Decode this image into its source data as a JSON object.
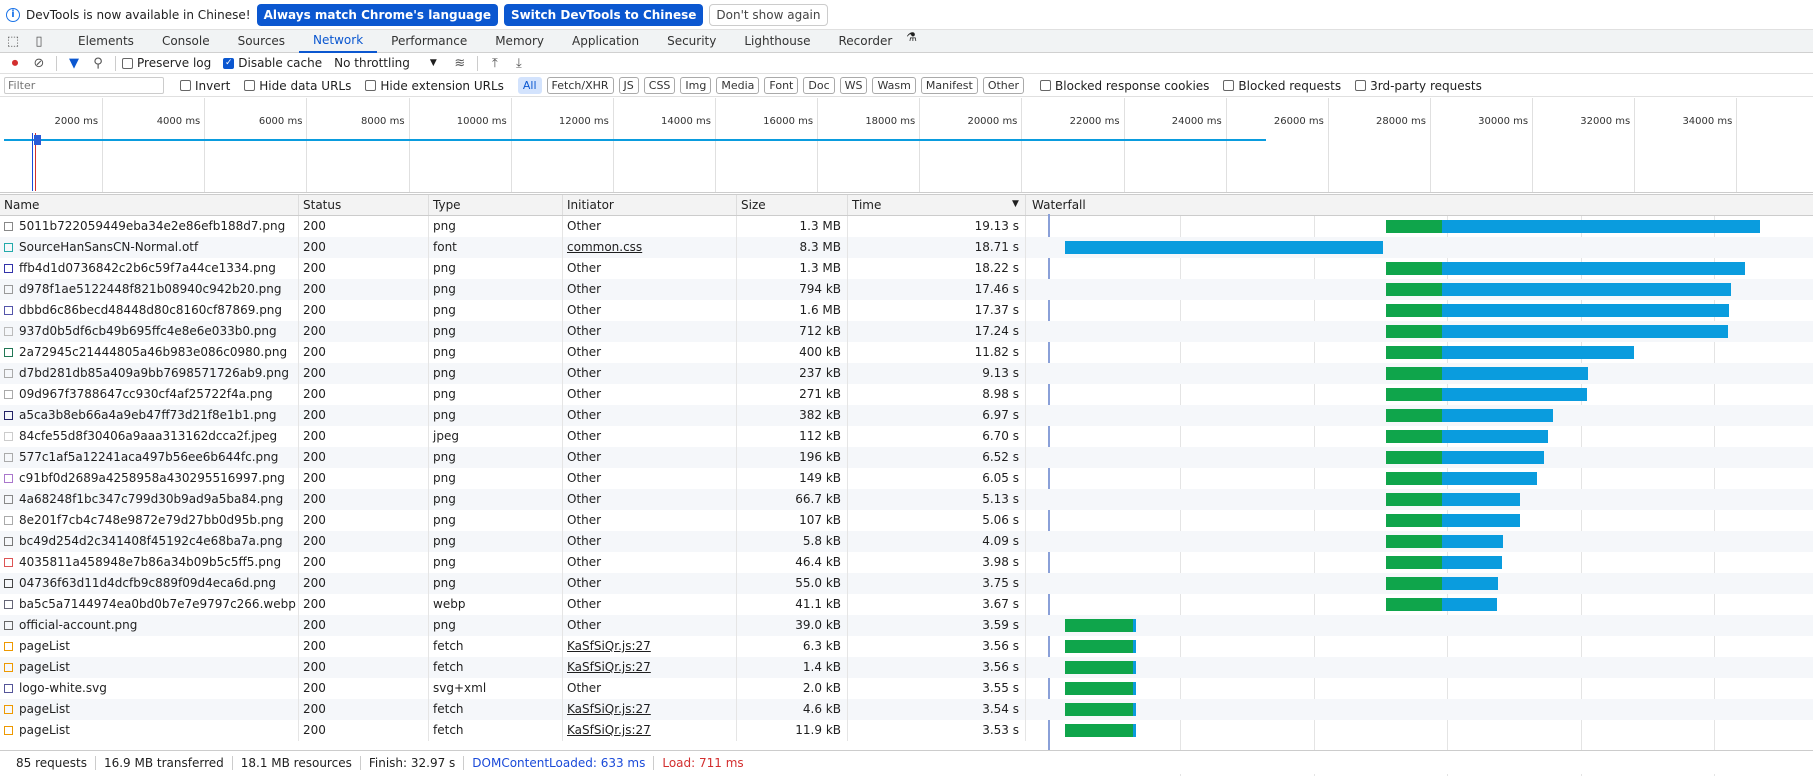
{
  "infobar": {
    "message": "DevTools is now available in Chinese!",
    "btn_match": "Always match Chrome's language",
    "btn_switch": "Switch DevTools to Chinese",
    "btn_dismiss": "Don't show again"
  },
  "tabs": [
    "Elements",
    "Console",
    "Sources",
    "Network",
    "Performance",
    "Memory",
    "Application",
    "Security",
    "Lighthouse",
    "Recorder"
  ],
  "toolbar": {
    "preserve_log": "Preserve log",
    "disable_cache": "Disable cache",
    "throttling": "No throttling"
  },
  "filterbar": {
    "placeholder": "Filter",
    "invert": "Invert",
    "hide_data_urls": "Hide data URLs",
    "hide_ext_urls": "Hide extension URLs",
    "chips": [
      "All",
      "Fetch/XHR",
      "JS",
      "CSS",
      "Img",
      "Media",
      "Font",
      "Doc",
      "WS",
      "Wasm",
      "Manifest",
      "Other"
    ],
    "blocked_cookies": "Blocked response cookies",
    "blocked_requests": "Blocked requests",
    "third_party": "3rd-party requests"
  },
  "overview_ticks": [
    "2000 ms",
    "4000 ms",
    "6000 ms",
    "8000 ms",
    "10000 ms",
    "12000 ms",
    "14000 ms",
    "16000 ms",
    "18000 ms",
    "20000 ms",
    "22000 ms",
    "24000 ms",
    "26000 ms",
    "28000 ms",
    "30000 ms",
    "32000 ms",
    "34000 ms"
  ],
  "columns": {
    "name": "Name",
    "status": "Status",
    "type": "Type",
    "initiator": "Initiator",
    "size": "Size",
    "time": "Time",
    "waterfall": "Waterfall"
  },
  "rows": [
    {
      "name": "5011b722059449eba34e2e86efb188d7.png",
      "status": "200",
      "type": "png",
      "initiator": "Other",
      "size": "1.3 MB",
      "time": "19.13 s",
      "ws": 19.3,
      "wg": 22.6,
      "we": 41.3,
      "icon": "#888"
    },
    {
      "name": "SourceHanSansCN-Normal.otf",
      "status": "200",
      "type": "font",
      "initiator": "common.css",
      "size": "8.3 MB",
      "time": "18.71 s",
      "ws": 0.4,
      "wg": 0.4,
      "we": 19.1,
      "icon": "#2aa"
    },
    {
      "name": "ffb4d1d0736842c2b6c59f7a44ce1334.png",
      "status": "200",
      "type": "png",
      "initiator": "Other",
      "size": "1.3 MB",
      "time": "18.22 s",
      "ws": 19.3,
      "wg": 22.6,
      "we": 40.4,
      "icon": "#33a"
    },
    {
      "name": "d978f1ae5122448f821b08940c942b20.png",
      "status": "200",
      "type": "png",
      "initiator": "Other",
      "size": "794 kB",
      "time": "17.46 s",
      "ws": 19.3,
      "wg": 22.6,
      "we": 39.6,
      "icon": "#999"
    },
    {
      "name": "dbbd6c86becd48448d80c8160cf87869.png",
      "status": "200",
      "type": "png",
      "initiator": "Other",
      "size": "1.6 MB",
      "time": "17.37 s",
      "ws": 19.3,
      "wg": 22.6,
      "we": 39.5,
      "icon": "#55a"
    },
    {
      "name": "937d0b5df6cb49b695ffc4e8e6e033b0.png",
      "status": "200",
      "type": "png",
      "initiator": "Other",
      "size": "712 kB",
      "time": "17.24 s",
      "ws": 19.3,
      "wg": 22.6,
      "we": 39.4,
      "icon": "#bbb"
    },
    {
      "name": "2a72945c21444805a46b983e086c0980.png",
      "status": "200",
      "type": "png",
      "initiator": "Other",
      "size": "400 kB",
      "time": "11.82 s",
      "ws": 19.3,
      "wg": 22.6,
      "we": 33.9,
      "icon": "#275"
    },
    {
      "name": "d7bd281db85a409a9bb7698571726ab9.png",
      "status": "200",
      "type": "png",
      "initiator": "Other",
      "size": "237 kB",
      "time": "9.13 s",
      "ws": 19.3,
      "wg": 22.6,
      "we": 31.2,
      "icon": "#aaa"
    },
    {
      "name": "09d967f3788647cc930cf4af25722f4a.png",
      "status": "200",
      "type": "png",
      "initiator": "Other",
      "size": "271 kB",
      "time": "8.98 s",
      "ws": 19.3,
      "wg": 22.6,
      "we": 31.1,
      "icon": "#aaa"
    },
    {
      "name": "a5ca3b8eb66a4a9eb47ff73d21f8e1b1.png",
      "status": "200",
      "type": "png",
      "initiator": "Other",
      "size": "382 kB",
      "time": "6.97 s",
      "ws": 19.3,
      "wg": 22.6,
      "we": 29.1,
      "icon": "#226"
    },
    {
      "name": "84cfe55d8f30406a9aaa313162dcca2f.jpeg",
      "status": "200",
      "type": "jpeg",
      "initiator": "Other",
      "size": "112 kB",
      "time": "6.70 s",
      "ws": 19.3,
      "wg": 22.6,
      "we": 28.8,
      "icon": "#ccc"
    },
    {
      "name": "577c1af5a12241aca497b56ee6b644fc.png",
      "status": "200",
      "type": "png",
      "initiator": "Other",
      "size": "196 kB",
      "time": "6.52 s",
      "ws": 19.3,
      "wg": 22.6,
      "we": 28.6,
      "icon": "#aaa"
    },
    {
      "name": "c91bf0d2689a4258958a430295516997.png",
      "status": "200",
      "type": "png",
      "initiator": "Other",
      "size": "149 kB",
      "time": "6.05 s",
      "ws": 19.3,
      "wg": 22.6,
      "we": 28.2,
      "icon": "#a7c"
    },
    {
      "name": "4a68248f1bc347c799d30b9ad9a5ba84.png",
      "status": "200",
      "type": "png",
      "initiator": "Other",
      "size": "66.7 kB",
      "time": "5.13 s",
      "ws": 19.3,
      "wg": 22.6,
      "we": 27.2,
      "icon": "#888"
    },
    {
      "name": "8e201f7cb4c748e9872e79d27bb0d95b.png",
      "status": "200",
      "type": "png",
      "initiator": "Other",
      "size": "107 kB",
      "time": "5.06 s",
      "ws": 19.3,
      "wg": 22.6,
      "we": 27.2,
      "icon": "#aaa"
    },
    {
      "name": "bc49d254d2c341408f45192c4e68ba7a.png",
      "status": "200",
      "type": "png",
      "initiator": "Other",
      "size": "5.8 kB",
      "time": "4.09 s",
      "ws": 19.3,
      "wg": 22.6,
      "we": 26.2,
      "icon": "#777"
    },
    {
      "name": "4035811a458948e7b86a34b09b5c5ff5.png",
      "status": "200",
      "type": "png",
      "initiator": "Other",
      "size": "46.4 kB",
      "time": "3.98 s",
      "ws": 19.3,
      "wg": 22.6,
      "we": 26.1,
      "icon": "#d55"
    },
    {
      "name": "04736f63d11d4dcfb9c889f09d4eca6d.png",
      "status": "200",
      "type": "png",
      "initiator": "Other",
      "size": "55.0 kB",
      "time": "3.75 s",
      "ws": 19.3,
      "wg": 22.6,
      "we": 25.9,
      "icon": "#444"
    },
    {
      "name": "ba5c5a7144974ea0bd0b7e7e9797c266.webp",
      "status": "200",
      "type": "webp",
      "initiator": "Other",
      "size": "41.1 kB",
      "time": "3.67 s",
      "ws": 19.3,
      "wg": 22.6,
      "we": 25.8,
      "icon": "#667"
    },
    {
      "name": "official-account.png",
      "status": "200",
      "type": "png",
      "initiator": "Other",
      "size": "39.0 kB",
      "time": "3.59 s",
      "ws": 0.4,
      "wg": 4.4,
      "we": 4.6,
      "icon": "#666"
    },
    {
      "name": "pageList",
      "status": "200",
      "type": "fetch",
      "initiator": "KaSfSiQr.js:27",
      "size": "6.3 kB",
      "time": "3.56 s",
      "ws": 0.4,
      "wg": 4.4,
      "we": 4.6,
      "icon": "#e90"
    },
    {
      "name": "pageList",
      "status": "200",
      "type": "fetch",
      "initiator": "KaSfSiQr.js:27",
      "size": "1.4 kB",
      "time": "3.56 s",
      "ws": 0.4,
      "wg": 4.4,
      "we": 4.6,
      "icon": "#e90"
    },
    {
      "name": "logo-white.svg",
      "status": "200",
      "type": "svg+xml",
      "initiator": "Other",
      "size": "2.0 kB",
      "time": "3.55 s",
      "ws": 0.4,
      "wg": 4.4,
      "we": 4.6,
      "icon": "#559"
    },
    {
      "name": "pageList",
      "status": "200",
      "type": "fetch",
      "initiator": "KaSfSiQr.js:27",
      "size": "4.6 kB",
      "time": "3.54 s",
      "ws": 0.4,
      "wg": 4.4,
      "we": 4.6,
      "icon": "#e90"
    },
    {
      "name": "pageList",
      "status": "200",
      "type": "fetch",
      "initiator": "KaSfSiQr.js:27",
      "size": "11.9 kB",
      "time": "3.53 s",
      "ws": 0.4,
      "wg": 4.4,
      "we": 4.6,
      "icon": "#e90"
    }
  ],
  "status": {
    "requests": "85 requests",
    "transferred": "16.9 MB transferred",
    "resources": "18.1 MB resources",
    "finish": "Finish: 32.97 s",
    "dcl": "DOMContentLoaded: 633 ms",
    "load": "Load: 711 ms"
  },
  "colors": {
    "accent": "#0b57d0",
    "green": "#0fa54b",
    "blue": "#0a9cde",
    "dcl": "#1a4ad9",
    "load": "#d32f2f"
  }
}
